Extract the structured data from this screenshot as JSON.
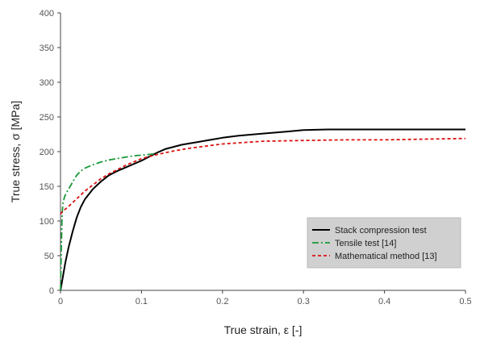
{
  "chart_data": {
    "type": "line",
    "title": "",
    "xlabel": "True strain, ε [-]",
    "ylabel": "True stress, σ [MPa]",
    "xlim": [
      0,
      0.5
    ],
    "ylim": [
      0,
      400
    ],
    "x_ticks": [
      0,
      0.1,
      0.2,
      0.3,
      0.4,
      0.5
    ],
    "x_tick_labels": [
      "0",
      "0.1",
      "0.2",
      "0.3",
      "0.4",
      "0.5"
    ],
    "y_ticks": [
      0,
      50,
      100,
      150,
      200,
      250,
      300,
      350,
      400
    ],
    "y_tick_labels": [
      "0",
      "50",
      "100",
      "150",
      "200",
      "250",
      "300",
      "350",
      "400"
    ],
    "grid": false,
    "legend_position": "bottom-right",
    "series": [
      {
        "name": "Stack compression test",
        "color": "#000000",
        "style": "solid",
        "x": [
          0,
          0.003,
          0.006,
          0.01,
          0.015,
          0.02,
          0.025,
          0.03,
          0.04,
          0.05,
          0.06,
          0.07,
          0.08,
          0.09,
          0.1,
          0.11,
          0.12,
          0.13,
          0.15,
          0.17,
          0.2,
          0.22,
          0.25,
          0.28,
          0.3,
          0.33,
          0.36,
          0.4,
          0.45,
          0.5
        ],
        "y": [
          0,
          20,
          40,
          62,
          85,
          105,
          120,
          131,
          146,
          157,
          166,
          172,
          177,
          182,
          187,
          193,
          199,
          204,
          210,
          214,
          220,
          223,
          226,
          229,
          231,
          232,
          232,
          232,
          232,
          232
        ]
      },
      {
        "name": "Tensile test [14]",
        "color": "#1a9a3a",
        "style": "dashdot",
        "x": [
          0,
          0.001,
          0.002,
          0.003,
          0.005,
          0.008,
          0.012,
          0.016,
          0.02,
          0.025,
          0.03,
          0.04,
          0.05,
          0.06,
          0.07,
          0.08,
          0.09,
          0.1,
          0.11,
          0.12
        ],
        "y": [
          0,
          60,
          110,
          125,
          135,
          142,
          150,
          158,
          166,
          172,
          176,
          181,
          185,
          188,
          190,
          192,
          194,
          195,
          196,
          197
        ]
      },
      {
        "name": "Mathematical method [13]",
        "color": "#dd1111",
        "style": "dashed",
        "x": [
          0,
          0.002,
          0.005,
          0.01,
          0.02,
          0.03,
          0.04,
          0.05,
          0.06,
          0.07,
          0.08,
          0.09,
          0.1,
          0.12,
          0.14,
          0.16,
          0.18,
          0.2,
          0.25,
          0.3,
          0.35,
          0.4,
          0.45,
          0.5
        ],
        "y": [
          110,
          113,
          116,
          121,
          132,
          143,
          152,
          161,
          168,
          174,
          180,
          185,
          190,
          196,
          201,
          205,
          208,
          211,
          215,
          216,
          217,
          217,
          218,
          219
        ]
      }
    ]
  }
}
